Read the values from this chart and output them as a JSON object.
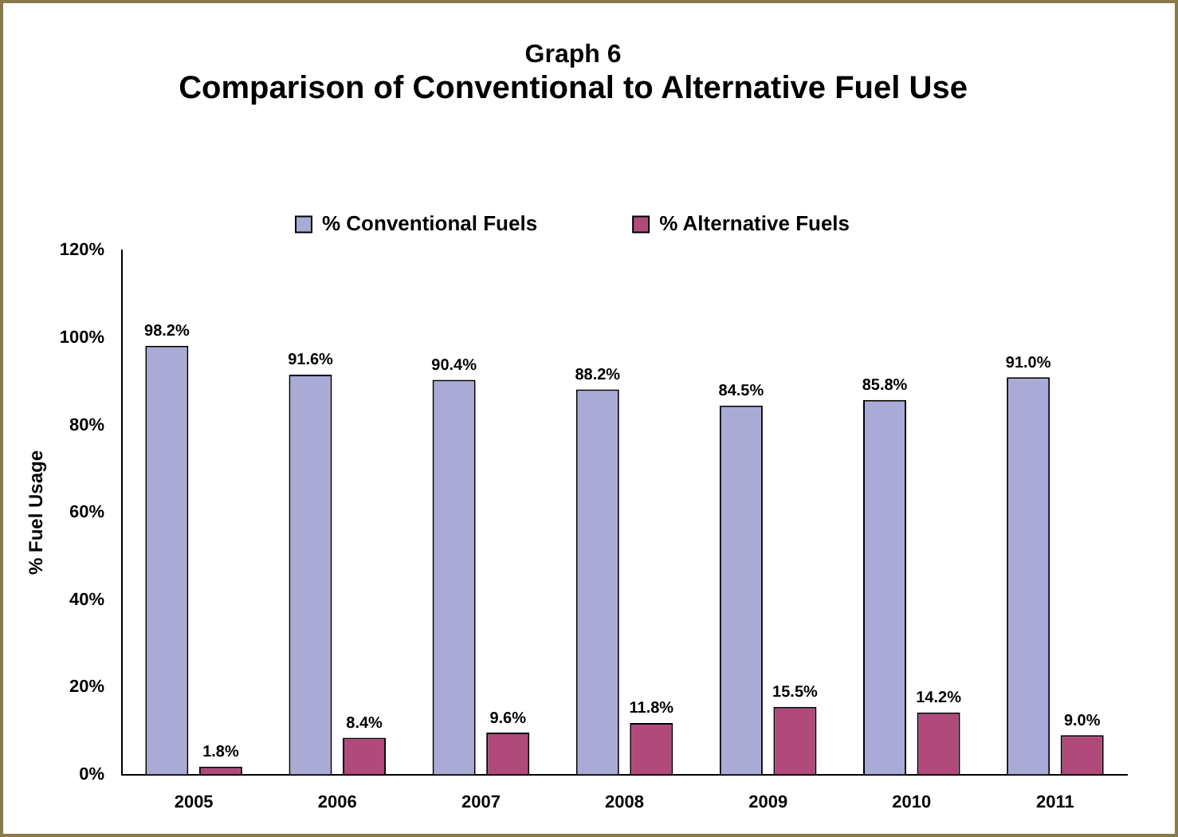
{
  "chart_data": {
    "type": "bar",
    "title": "Graph 6",
    "subtitle": "Comparison of Conventional to Alternative Fuel Use",
    "ylabel": "% Fuel Usage",
    "categories": [
      "2005",
      "2006",
      "2007",
      "2008",
      "2009",
      "2010",
      "2011"
    ],
    "series": [
      {
        "name": "% Conventional Fuels",
        "color": "#aaaad6",
        "values": [
          98.2,
          91.6,
          90.4,
          88.2,
          84.5,
          85.8,
          91.0
        ],
        "value_labels": [
          "98.2%",
          "91.6%",
          "90.4%",
          "88.2%",
          "84.5%",
          "85.8%",
          "91.0%"
        ]
      },
      {
        "name": "% Alternative Fuels",
        "color": "#b04a7a",
        "values": [
          1.8,
          8.4,
          9.6,
          11.8,
          15.5,
          14.2,
          9.0
        ],
        "value_labels": [
          "1.8%",
          "8.4%",
          "9.6%",
          "11.8%",
          "15.5%",
          "14.2%",
          "9.0%"
        ]
      }
    ],
    "ylim": [
      0,
      120
    ],
    "yticks": [
      {
        "value": 0,
        "label": "0%"
      },
      {
        "value": 20,
        "label": "20%"
      },
      {
        "value": 40,
        "label": "40%"
      },
      {
        "value": 60,
        "label": "60%"
      },
      {
        "value": 80,
        "label": "80%"
      },
      {
        "value": 100,
        "label": "100%"
      },
      {
        "value": 120,
        "label": "120%"
      }
    ],
    "grid": false,
    "legend": "top"
  }
}
